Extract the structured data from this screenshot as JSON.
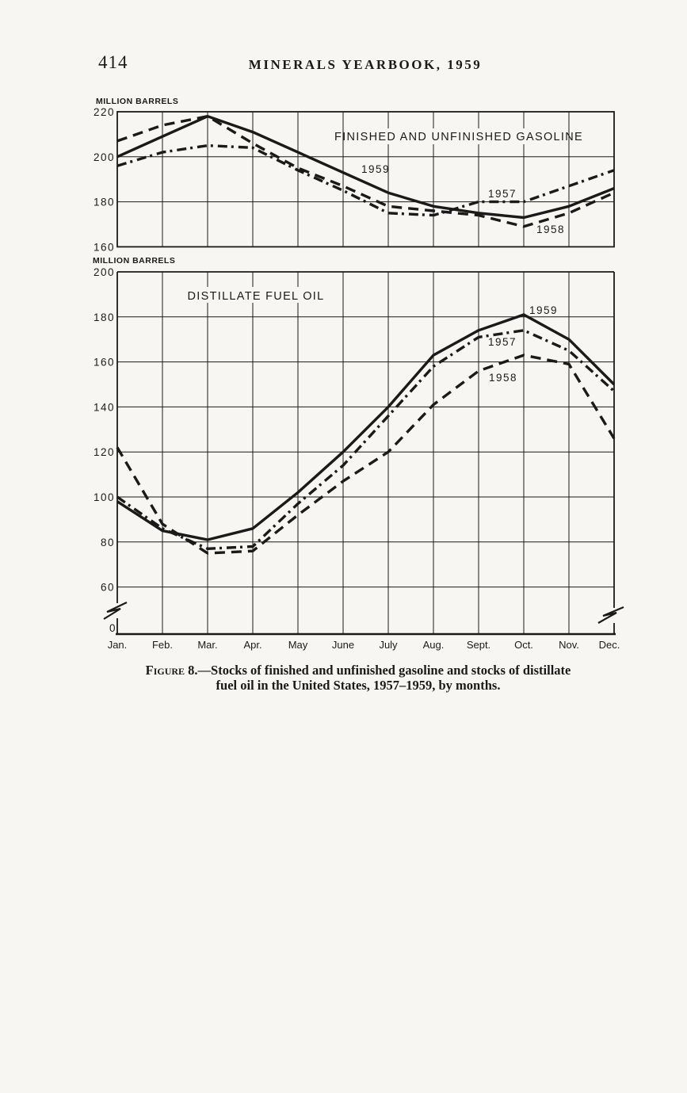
{
  "page": {
    "number": "414",
    "header": "MINERALS YEARBOOK, 1959"
  },
  "months": [
    "Jan.",
    "Feb.",
    "Mar.",
    "Apr.",
    "May",
    "June",
    "July",
    "Aug.",
    "Sept.",
    "Oct.",
    "Nov.",
    "Dec."
  ],
  "chart_data": [
    {
      "type": "line",
      "title": "FINISHED AND UNFINISHED GASOLINE",
      "unit_label": "MILLION BARRELS",
      "xlabel": "",
      "ylabel": "MILLION BARRELS",
      "ylim": [
        160,
        220
      ],
      "yticks": [
        220,
        200,
        180,
        160
      ],
      "grid": "on",
      "legend": "inline-labels",
      "categories": [
        "Jan.",
        "Feb.",
        "Mar.",
        "Apr.",
        "May",
        "June",
        "July",
        "Aug.",
        "Sept.",
        "Oct.",
        "Nov.",
        "Dec."
      ],
      "series": [
        {
          "name": "1959",
          "style": "solid",
          "values": [
            200,
            209,
            218,
            211,
            202,
            193,
            184,
            178,
            175,
            173,
            178,
            186
          ]
        },
        {
          "name": "1958",
          "style": "dashed",
          "values": [
            207,
            214,
            218,
            206,
            195,
            187,
            178,
            176,
            174,
            169,
            175,
            184
          ]
        },
        {
          "name": "1957",
          "style": "dashdot",
          "values": [
            196,
            202,
            205,
            204,
            194,
            185,
            175,
            174,
            180,
            180,
            187,
            194
          ]
        }
      ],
      "series_label_positions": [
        {
          "name": "1959",
          "x": 456,
          "y": 218
        },
        {
          "name": "1957",
          "x": 616,
          "y": 249
        },
        {
          "name": "1958",
          "x": 677,
          "y": 294
        }
      ]
    },
    {
      "type": "line",
      "title": "DISTILLATE FUEL OIL",
      "unit_label": "MILLION BARRELS",
      "xlabel": "",
      "ylabel": "MILLION BARRELS",
      "ylim": [
        0,
        200
      ],
      "y_axis_break_between": [
        0,
        60
      ],
      "yticks": [
        200,
        180,
        160,
        140,
        120,
        100,
        80,
        60,
        0
      ],
      "grid": "on",
      "legend": "inline-labels",
      "categories": [
        "Jan.",
        "Feb.",
        "Mar.",
        "Apr.",
        "May",
        "June",
        "July",
        "Aug.",
        "Sept.",
        "Oct.",
        "Nov.",
        "Dec."
      ],
      "series": [
        {
          "name": "1959",
          "style": "solid",
          "values": [
            98,
            85,
            81,
            86,
            102,
            120,
            140,
            163,
            174,
            181,
            170,
            150
          ]
        },
        {
          "name": "1958",
          "style": "dashed",
          "values": [
            122,
            88,
            75,
            76,
            92,
            107,
            120,
            141,
            156,
            163,
            159,
            126
          ]
        },
        {
          "name": "1957",
          "style": "dashdot",
          "values": [
            100,
            86,
            77,
            78,
            97,
            114,
            136,
            158,
            171,
            174,
            165,
            147
          ]
        }
      ],
      "series_label_positions": [
        {
          "name": "1959",
          "x": 668,
          "y": 396
        },
        {
          "name": "1957",
          "x": 616,
          "y": 436
        },
        {
          "name": "1958",
          "x": 617,
          "y": 481
        }
      ]
    }
  ],
  "caption": {
    "figure_label": "Figure",
    "line1_rest": " 8.—Stocks of finished and unfinished gasoline and stocks of distillate",
    "line2": "fuel oil in the United States, 1957–1959, by months."
  }
}
